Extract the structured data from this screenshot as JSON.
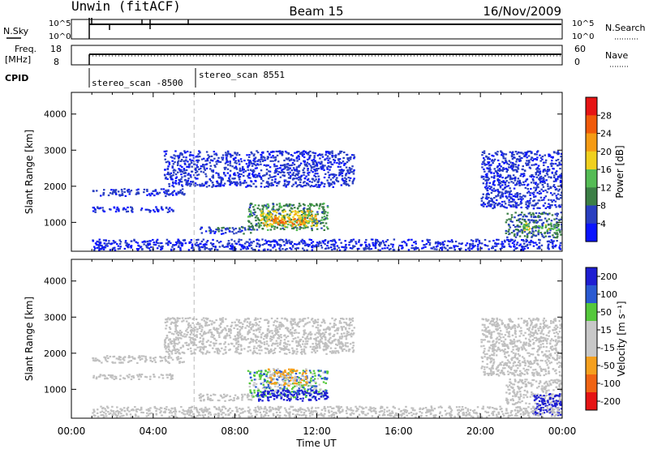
{
  "header": {
    "station": "Unwin (fitACF)",
    "beam": "Beam 15",
    "date": "16/Nov/2009"
  },
  "status_panels": {
    "nsky": {
      "label": "N.Sky",
      "ticks": [
        "10^5",
        "10^0"
      ]
    },
    "nsearch": {
      "label": "N.Search",
      "ticks": [
        "10^5",
        "10^0"
      ]
    },
    "freq": {
      "label_line1": "Freq.",
      "label_line2": "[MHz]",
      "ticks": [
        "18",
        "8"
      ]
    },
    "nave": {
      "label": "Nave",
      "ticks": [
        "60",
        "0"
      ]
    },
    "cpid": {
      "label": "CPID",
      "modes": [
        "stereo_scan -8500",
        "stereo_scan 8551"
      ],
      "mode_switch_hour": 6
    }
  },
  "colors": {
    "power_scale": [
      "#0a14ff",
      "#2a3fc0",
      "#3c7f46",
      "#55bc55",
      "#f0d01e",
      "#f59b14",
      "#f05a0a",
      "#e61414"
    ],
    "velocity_scale": [
      "#e61414",
      "#f06414",
      "#f5a01e",
      "#c8c8c8",
      "#c8c8c8",
      "#55c83c",
      "#2a5ad2",
      "#1e1ed2"
    ],
    "ground_scatter": "#c0c0c0"
  },
  "chart_data": [
    {
      "type": "heatmap",
      "name": "Power",
      "xlabel": "Time UT",
      "ylabel": "Slant Range [km]",
      "xlim": [
        0,
        24
      ],
      "ylim": [
        200,
        4600
      ],
      "x_ticks": [
        "00:00",
        "04:00",
        "08:00",
        "12:00",
        "16:00",
        "20:00",
        "00:00"
      ],
      "y_ticks": [
        "1000",
        "2000",
        "3000",
        "4000"
      ],
      "colorbar": {
        "label": "Power [dB]",
        "ticks": [
          "4",
          "8",
          "12",
          "16",
          "20",
          "24",
          "28"
        ],
        "range": [
          0,
          30
        ]
      },
      "regions": [
        {
          "t0": 1.0,
          "t1": 5.5,
          "r0": 1750,
          "r1": 1950,
          "value": 5
        },
        {
          "t0": 1.0,
          "t1": 5.0,
          "r0": 1300,
          "r1": 1450,
          "value": 4
        },
        {
          "t0": 4.5,
          "t1": 13.8,
          "r0": 2000,
          "r1": 3000,
          "value": 5
        },
        {
          "t0": 6.2,
          "t1": 8.8,
          "r0": 700,
          "r1": 900,
          "value": 6
        },
        {
          "t0": 8.6,
          "t1": 12.5,
          "r0": 800,
          "r1": 1550,
          "value": 10
        },
        {
          "t0": 9.2,
          "t1": 12.0,
          "r0": 900,
          "r1": 1350,
          "value": 18
        },
        {
          "t0": 9.8,
          "t1": 11.4,
          "r0": 950,
          "r1": 1150,
          "value": 24
        },
        {
          "t0": 20.0,
          "t1": 24.0,
          "r0": 1400,
          "r1": 3000,
          "value": 5
        },
        {
          "t0": 21.2,
          "t1": 24.0,
          "r0": 600,
          "r1": 1300,
          "value": 8
        },
        {
          "t0": 22.0,
          "t1": 23.8,
          "r0": 800,
          "r1": 1000,
          "value": 14
        },
        {
          "t0": 1.0,
          "t1": 24.0,
          "r0": 250,
          "r1": 550,
          "value": 4
        }
      ]
    },
    {
      "type": "heatmap",
      "name": "Velocity",
      "xlabel": "Time UT",
      "ylabel": "Slant Range [km]",
      "xlim": [
        0,
        24
      ],
      "ylim": [
        200,
        4600
      ],
      "x_ticks": [
        "00:00",
        "04:00",
        "08:00",
        "12:00",
        "16:00",
        "20:00",
        "00:00"
      ],
      "y_ticks": [
        "1000",
        "2000",
        "3000",
        "4000"
      ],
      "colorbar": {
        "label": "Velocity [m s⁻¹]",
        "ticks": [
          "200",
          "100",
          "50",
          "15",
          "-15",
          "-50",
          "-100",
          "-200"
        ],
        "range": [
          -250,
          250
        ]
      },
      "regions": [
        {
          "t0": 1.0,
          "t1": 5.5,
          "r0": 1750,
          "r1": 1950,
          "value": "ground"
        },
        {
          "t0": 1.0,
          "t1": 5.0,
          "r0": 1300,
          "r1": 1450,
          "value": "ground"
        },
        {
          "t0": 4.5,
          "t1": 13.8,
          "r0": 2000,
          "r1": 3000,
          "value": "ground"
        },
        {
          "t0": 6.2,
          "t1": 8.8,
          "r0": 700,
          "r1": 900,
          "value": "ground"
        },
        {
          "t0": 8.6,
          "t1": 12.5,
          "r0": 800,
          "r1": 1550,
          "value": 40
        },
        {
          "t0": 9.0,
          "t1": 12.5,
          "r0": 700,
          "r1": 1000,
          "value": 220
        },
        {
          "t0": 9.5,
          "t1": 11.5,
          "r0": 1100,
          "r1": 1600,
          "value": -60
        },
        {
          "t0": 20.0,
          "t1": 24.0,
          "r0": 1400,
          "r1": 3000,
          "value": "ground"
        },
        {
          "t0": 21.2,
          "t1": 24.0,
          "r0": 600,
          "r1": 1300,
          "value": "ground"
        },
        {
          "t0": 22.5,
          "t1": 24.0,
          "r0": 300,
          "r1": 900,
          "value": 200
        },
        {
          "t0": 1.0,
          "t1": 24.0,
          "r0": 250,
          "r1": 550,
          "value": "ground"
        }
      ]
    }
  ]
}
